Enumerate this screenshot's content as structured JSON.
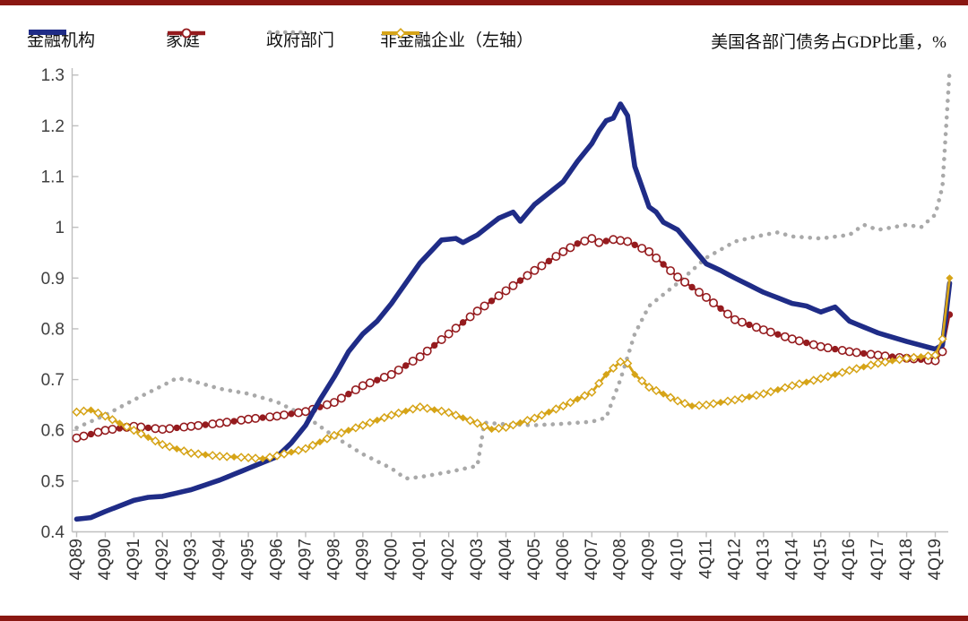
{
  "page": {
    "accent_color": "#8a1712",
    "background": "#ffffff"
  },
  "header": {
    "title": "美国各部门债务占GDP比重，%"
  },
  "legend": {
    "items": [
      {
        "id": "financial",
        "label": "金融机构",
        "color": "#1f2c87",
        "swatch": "thick-line"
      },
      {
        "id": "household",
        "label": "家庭",
        "color": "#951b1e",
        "swatch": "line-circle"
      },
      {
        "id": "government",
        "label": "政府部门",
        "color": "#a9a9a9",
        "swatch": "dotted-line"
      },
      {
        "id": "nonfinancial",
        "label": "非金融企业（左轴）",
        "color": "#d6a418",
        "swatch": "line-diamond"
      }
    ]
  },
  "chart_data": {
    "type": "line",
    "title": "美国各部门债务占GDP比重，%",
    "xlabel": "",
    "ylabel": "",
    "frequency": "quarterly",
    "grid": false,
    "legend_position": "top-left",
    "ylim": [
      0.4,
      1.3
    ],
    "y_ticks": [
      {
        "v": 0.4,
        "label": "0.4"
      },
      {
        "v": 0.5,
        "label": "0.5"
      },
      {
        "v": 0.6,
        "label": "0.6"
      },
      {
        "v": 0.7,
        "label": "0.7"
      },
      {
        "v": 0.8,
        "label": "0.8"
      },
      {
        "v": 0.9,
        "label": "0.9"
      },
      {
        "v": 1.0,
        "label": "1"
      },
      {
        "v": 1.1,
        "label": "1.1"
      },
      {
        "v": 1.2,
        "label": "1.2"
      },
      {
        "v": 1.3,
        "label": "1.3"
      }
    ],
    "x_tick_labels": [
      "4Q89",
      "4Q90",
      "4Q91",
      "4Q92",
      "4Q93",
      "4Q94",
      "4Q95",
      "4Q96",
      "4Q97",
      "4Q98",
      "4Q99",
      "4Q00",
      "4Q01",
      "4Q02",
      "4Q03",
      "4Q04",
      "4Q05",
      "4Q06",
      "4Q07",
      "4Q08",
      "4Q09",
      "4Q10",
      "4Q11",
      "4Q12",
      "4Q13",
      "4Q14",
      "4Q15",
      "4Q16",
      "4Q17",
      "4Q18",
      "4Q19"
    ],
    "x_range": [
      "4Q89",
      "2Q20"
    ],
    "series": [
      {
        "id": "government",
        "name": "政府部门",
        "color": "#a9a9a9",
        "line": "dotted",
        "marker": "none",
        "points": [
          [
            "4Q89",
            0.605
          ],
          [
            "4Q90",
            0.63
          ],
          [
            "4Q91",
            0.66
          ],
          [
            "4Q92",
            0.688
          ],
          [
            "2Q93",
            0.703
          ],
          [
            "4Q93",
            0.698
          ],
          [
            "4Q94",
            0.682
          ],
          [
            "4Q95",
            0.672
          ],
          [
            "4Q96",
            0.656
          ],
          [
            "4Q97",
            0.628
          ],
          [
            "4Q98",
            0.588
          ],
          [
            "4Q99",
            0.553
          ],
          [
            "4Q00",
            0.525
          ],
          [
            "2Q01",
            0.505
          ],
          [
            "4Q01",
            0.508
          ],
          [
            "4Q02",
            0.518
          ],
          [
            "4Q03",
            0.53
          ],
          [
            "1Q04",
            0.615
          ],
          [
            "4Q04",
            0.612
          ],
          [
            "4Q05",
            0.61
          ],
          [
            "4Q06",
            0.613
          ],
          [
            "4Q07",
            0.617
          ],
          [
            "2Q08",
            0.625
          ],
          [
            "4Q08",
            0.7
          ],
          [
            "2Q09",
            0.79
          ],
          [
            "4Q09",
            0.845
          ],
          [
            "4Q10",
            0.89
          ],
          [
            "4Q11",
            0.94
          ],
          [
            "4Q12",
            0.972
          ],
          [
            "4Q13",
            0.985
          ],
          [
            "2Q14",
            0.99
          ],
          [
            "4Q14",
            0.982
          ],
          [
            "4Q15",
            0.978
          ],
          [
            "4Q16",
            0.985
          ],
          [
            "2Q17",
            1.005
          ],
          [
            "4Q17",
            0.995
          ],
          [
            "4Q18",
            1.005
          ],
          [
            "2Q19",
            1.0
          ],
          [
            "4Q19",
            1.025
          ],
          [
            "1Q20",
            1.08
          ],
          [
            "2Q20",
            1.31
          ]
        ]
      },
      {
        "id": "household",
        "name": "家庭",
        "color": "#951b1e",
        "line": "solid",
        "marker": "circle",
        "points": [
          [
            "4Q89",
            0.585
          ],
          [
            "4Q90",
            0.6
          ],
          [
            "4Q91",
            0.608
          ],
          [
            "4Q92",
            0.602
          ],
          [
            "4Q93",
            0.608
          ],
          [
            "4Q94",
            0.614
          ],
          [
            "4Q95",
            0.622
          ],
          [
            "4Q96",
            0.628
          ],
          [
            "4Q97",
            0.637
          ],
          [
            "4Q98",
            0.655
          ],
          [
            "4Q99",
            0.688
          ],
          [
            "4Q00",
            0.71
          ],
          [
            "4Q01",
            0.745
          ],
          [
            "4Q02",
            0.79
          ],
          [
            "4Q03",
            0.835
          ],
          [
            "4Q04",
            0.875
          ],
          [
            "4Q05",
            0.915
          ],
          [
            "4Q06",
            0.952
          ],
          [
            "2Q07",
            0.968
          ],
          [
            "4Q07",
            0.978
          ],
          [
            "1Q08",
            0.97
          ],
          [
            "3Q08",
            0.976
          ],
          [
            "1Q09",
            0.972
          ],
          [
            "4Q09",
            0.952
          ],
          [
            "4Q10",
            0.902
          ],
          [
            "4Q11",
            0.862
          ],
          [
            "4Q12",
            0.818
          ],
          [
            "4Q13",
            0.798
          ],
          [
            "4Q14",
            0.78
          ],
          [
            "4Q15",
            0.765
          ],
          [
            "4Q16",
            0.755
          ],
          [
            "4Q17",
            0.748
          ],
          [
            "4Q18",
            0.742
          ],
          [
            "4Q19",
            0.737
          ],
          [
            "1Q20",
            0.755
          ],
          [
            "2Q20",
            0.828
          ]
        ]
      },
      {
        "id": "financial",
        "name": "金融机构",
        "color": "#1f2c87",
        "line": "solid-thick",
        "marker": "none",
        "points": [
          [
            "4Q89",
            0.425
          ],
          [
            "2Q90",
            0.428
          ],
          [
            "4Q90",
            0.44
          ],
          [
            "4Q91",
            0.462
          ],
          [
            "2Q92",
            0.468
          ],
          [
            "4Q92",
            0.47
          ],
          [
            "4Q93",
            0.483
          ],
          [
            "4Q94",
            0.502
          ],
          [
            "4Q95",
            0.525
          ],
          [
            "4Q96",
            0.548
          ],
          [
            "2Q97",
            0.575
          ],
          [
            "4Q97",
            0.61
          ],
          [
            "2Q98",
            0.66
          ],
          [
            "4Q98",
            0.705
          ],
          [
            "2Q99",
            0.755
          ],
          [
            "4Q99",
            0.79
          ],
          [
            "2Q00",
            0.815
          ],
          [
            "4Q00",
            0.85
          ],
          [
            "4Q01",
            0.93
          ],
          [
            "3Q02",
            0.975
          ],
          [
            "1Q03",
            0.978
          ],
          [
            "2Q03",
            0.97
          ],
          [
            "4Q03",
            0.985
          ],
          [
            "3Q04",
            1.018
          ],
          [
            "1Q05",
            1.03
          ],
          [
            "2Q05",
            1.012
          ],
          [
            "4Q05",
            1.045
          ],
          [
            "4Q06",
            1.09
          ],
          [
            "2Q07",
            1.13
          ],
          [
            "4Q07",
            1.165
          ],
          [
            "1Q08",
            1.19
          ],
          [
            "2Q08",
            1.21
          ],
          [
            "3Q08",
            1.215
          ],
          [
            "4Q08",
            1.243
          ],
          [
            "1Q09",
            1.22
          ],
          [
            "2Q09",
            1.12
          ],
          [
            "4Q09",
            1.04
          ],
          [
            "1Q10",
            1.03
          ],
          [
            "2Q10",
            1.01
          ],
          [
            "4Q10",
            0.995
          ],
          [
            "4Q11",
            0.928
          ],
          [
            "2Q12",
            0.915
          ],
          [
            "4Q12",
            0.9
          ],
          [
            "4Q13",
            0.872
          ],
          [
            "4Q14",
            0.85
          ],
          [
            "2Q15",
            0.845
          ],
          [
            "4Q15",
            0.833
          ],
          [
            "2Q16",
            0.843
          ],
          [
            "4Q16",
            0.815
          ],
          [
            "4Q17",
            0.792
          ],
          [
            "4Q18",
            0.775
          ],
          [
            "4Q19",
            0.76
          ],
          [
            "1Q20",
            0.768
          ],
          [
            "2Q20",
            0.89
          ]
        ]
      },
      {
        "id": "nonfinancial",
        "name": "非金融企业（左轴）",
        "color": "#d6a418",
        "line": "solid",
        "marker": "diamond",
        "points": [
          [
            "4Q89",
            0.636
          ],
          [
            "2Q90",
            0.64
          ],
          [
            "4Q90",
            0.628
          ],
          [
            "4Q91",
            0.6
          ],
          [
            "4Q92",
            0.572
          ],
          [
            "4Q93",
            0.555
          ],
          [
            "4Q94",
            0.549
          ],
          [
            "4Q95",
            0.546
          ],
          [
            "2Q96",
            0.544
          ],
          [
            "4Q96",
            0.55
          ],
          [
            "4Q97",
            0.564
          ],
          [
            "4Q98",
            0.59
          ],
          [
            "4Q99",
            0.61
          ],
          [
            "4Q00",
            0.63
          ],
          [
            "4Q01",
            0.646
          ],
          [
            "4Q02",
            0.635
          ],
          [
            "4Q03",
            0.614
          ],
          [
            "2Q04",
            0.602
          ],
          [
            "4Q04",
            0.606
          ],
          [
            "4Q05",
            0.624
          ],
          [
            "4Q06",
            0.648
          ],
          [
            "4Q07",
            0.675
          ],
          [
            "2Q08",
            0.71
          ],
          [
            "4Q08",
            0.735
          ],
          [
            "1Q09",
            0.732
          ],
          [
            "2Q09",
            0.71
          ],
          [
            "4Q09",
            0.685
          ],
          [
            "4Q10",
            0.658
          ],
          [
            "2Q11",
            0.648
          ],
          [
            "4Q11",
            0.65
          ],
          [
            "4Q12",
            0.66
          ],
          [
            "4Q13",
            0.672
          ],
          [
            "4Q14",
            0.688
          ],
          [
            "4Q15",
            0.702
          ],
          [
            "4Q16",
            0.718
          ],
          [
            "4Q17",
            0.732
          ],
          [
            "4Q18",
            0.742
          ],
          [
            "4Q19",
            0.748
          ],
          [
            "1Q20",
            0.78
          ],
          [
            "2Q20",
            0.9
          ]
        ]
      }
    ]
  }
}
